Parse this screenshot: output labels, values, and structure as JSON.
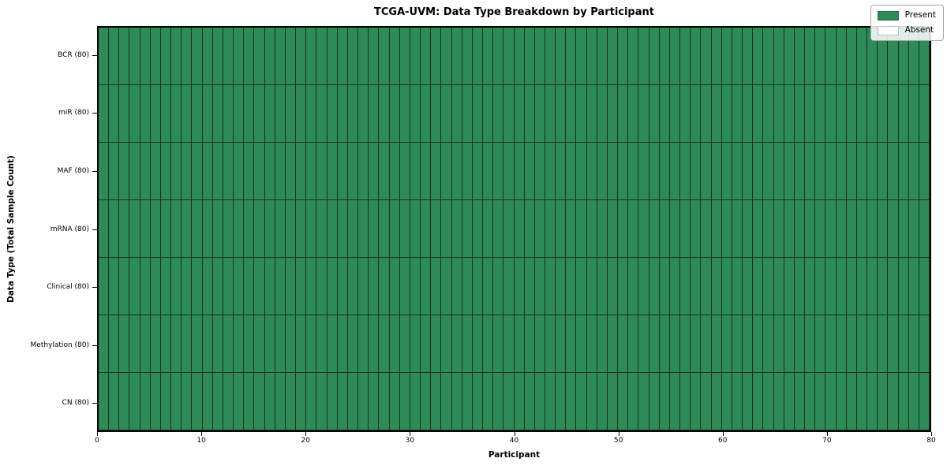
{
  "chart_data": {
    "type": "heatmap",
    "title": "TCGA-UVM: Data Type Breakdown by Participant",
    "xlabel": "Participant",
    "ylabel": "Data Type (Total Sample Count)",
    "xlim": [
      0,
      80
    ],
    "x_ticks": [
      0,
      10,
      20,
      30,
      40,
      50,
      60,
      70,
      80
    ],
    "n_participants": 80,
    "rows": [
      {
        "label": "BCR (80)",
        "present_count": 80,
        "absent_count": 0
      },
      {
        "label": "miR (80)",
        "present_count": 80,
        "absent_count": 0
      },
      {
        "label": "MAF (80)",
        "present_count": 80,
        "absent_count": 0
      },
      {
        "label": "mRNA (80)",
        "present_count": 80,
        "absent_count": 0
      },
      {
        "label": "Clinical (80)",
        "present_count": 80,
        "absent_count": 0
      },
      {
        "label": "Methylation (80)",
        "present_count": 80,
        "absent_count": 0
      },
      {
        "label": "CN (80)",
        "present_count": 80,
        "absent_count": 0
      }
    ],
    "legend": {
      "position": "upper right",
      "entries": [
        {
          "label": "Present",
          "color": "#2e8b57"
        },
        {
          "label": "Absent",
          "color": "#ffffff"
        }
      ]
    },
    "colors": {
      "present": "#2e8b57",
      "absent": "#ffffff",
      "cell_edge": "#1f4631",
      "spine": "#000000",
      "background": "#ffffff"
    },
    "grid": true
  }
}
